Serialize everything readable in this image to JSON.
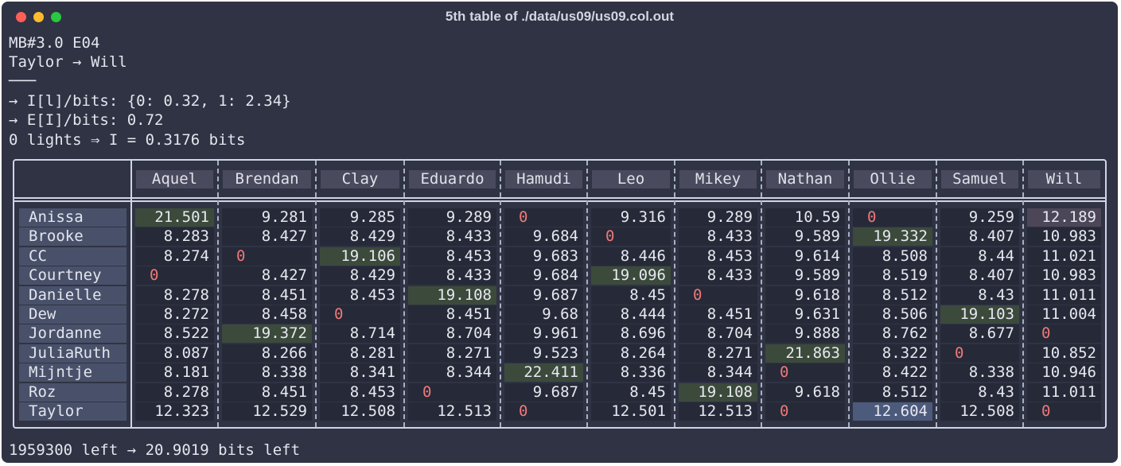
{
  "window": {
    "title": "5th table of ./data/us09/us09.col.out"
  },
  "header_lines": [
    "MB#3.0 E04",
    "Taylor → Will",
    "───",
    "→ I[l]/bits: {0: 0.32, 1: 2.34}",
    "→ E[I]/bits: 0.72",
    "0 lights ⇒ I = 0.3176 bits"
  ],
  "footer": "1959300 left → 20.9019 bits left",
  "table": {
    "columns": [
      "Aquel",
      "Brendan",
      "Clay",
      "Eduardo",
      "Hamudi",
      "Leo",
      "Mikey",
      "Nathan",
      "Ollie",
      "Samuel",
      "Will"
    ],
    "rows": [
      {
        "name": "Anissa",
        "values": [
          "21.501",
          "9.281",
          "9.285",
          "9.289",
          "0",
          "9.316",
          "9.289",
          "10.59",
          "0",
          "9.259",
          "12.189"
        ]
      },
      {
        "name": "Brooke",
        "values": [
          "8.283",
          "8.427",
          "8.429",
          "8.433",
          "9.684",
          "0",
          "8.433",
          "9.589",
          "19.332",
          "8.407",
          "10.983"
        ]
      },
      {
        "name": "CC",
        "values": [
          "8.274",
          "0",
          "19.106",
          "8.453",
          "9.683",
          "8.446",
          "8.453",
          "9.614",
          "8.508",
          "8.44",
          "11.021"
        ]
      },
      {
        "name": "Courtney",
        "values": [
          "0",
          "8.427",
          "8.429",
          "8.433",
          "9.684",
          "19.096",
          "8.433",
          "9.589",
          "8.519",
          "8.407",
          "10.983"
        ]
      },
      {
        "name": "Danielle",
        "values": [
          "8.278",
          "8.451",
          "8.453",
          "19.108",
          "9.687",
          "8.45",
          "0",
          "9.618",
          "8.512",
          "8.43",
          "11.011"
        ]
      },
      {
        "name": "Dew",
        "values": [
          "8.272",
          "8.458",
          "0",
          "8.451",
          "9.68",
          "8.444",
          "8.451",
          "9.631",
          "8.506",
          "19.103",
          "11.004"
        ]
      },
      {
        "name": "Jordanne",
        "values": [
          "8.522",
          "19.372",
          "8.714",
          "8.704",
          "9.961",
          "8.696",
          "8.704",
          "9.888",
          "8.762",
          "8.677",
          "0"
        ]
      },
      {
        "name": "JuliaRuth",
        "values": [
          "8.087",
          "8.266",
          "8.281",
          "8.271",
          "9.523",
          "8.264",
          "8.271",
          "21.863",
          "8.322",
          "0",
          "10.852"
        ]
      },
      {
        "name": "Mijntje",
        "values": [
          "8.181",
          "8.338",
          "8.341",
          "8.344",
          "22.411",
          "8.336",
          "8.344",
          "0",
          "8.422",
          "8.338",
          "10.946"
        ]
      },
      {
        "name": "Roz",
        "values": [
          "8.278",
          "8.451",
          "8.453",
          "0",
          "9.687",
          "8.45",
          "19.108",
          "9.618",
          "8.512",
          "8.43",
          "11.011"
        ]
      },
      {
        "name": "Taylor",
        "values": [
          "12.323",
          "12.529",
          "12.508",
          "12.513",
          "0",
          "12.501",
          "12.513",
          "0",
          "12.604",
          "12.508",
          "0"
        ]
      }
    ],
    "highlights": [
      {
        "row": 0,
        "col": 0,
        "kind": "green"
      },
      {
        "row": 0,
        "col": 10,
        "kind": "purple"
      },
      {
        "row": 1,
        "col": 8,
        "kind": "green"
      },
      {
        "row": 2,
        "col": 2,
        "kind": "green"
      },
      {
        "row": 3,
        "col": 5,
        "kind": "green"
      },
      {
        "row": 4,
        "col": 3,
        "kind": "green"
      },
      {
        "row": 5,
        "col": 9,
        "kind": "green"
      },
      {
        "row": 6,
        "col": 1,
        "kind": "green"
      },
      {
        "row": 7,
        "col": 7,
        "kind": "green"
      },
      {
        "row": 8,
        "col": 4,
        "kind": "green"
      },
      {
        "row": 9,
        "col": 6,
        "kind": "green"
      },
      {
        "row": 10,
        "col": 8,
        "kind": "blue"
      }
    ]
  },
  "colors": {
    "background": "#2f3343",
    "text": "#e3e6ee",
    "zero": "#f07878",
    "highlight_green": "#3c4a3c",
    "highlight_blue": "#4c5a7c",
    "highlight_purple": "#4c4658"
  }
}
